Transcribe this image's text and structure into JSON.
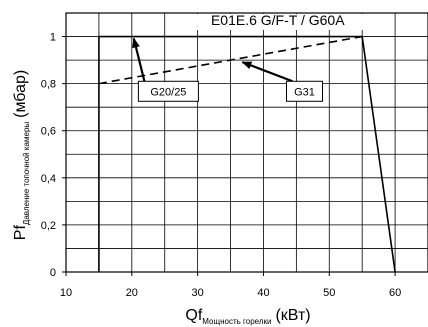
{
  "chart_data": {
    "type": "line",
    "title": "E01E.6 G/F-T / G60A",
    "xlabel": {
      "main": "Qf",
      "sub": "Мощность горелки",
      "unit": "(кВт)"
    },
    "ylabel": {
      "main": "Pf",
      "sub": "Давление топочной камеры",
      "unit": "(мбар)"
    },
    "xlim": [
      10,
      65
    ],
    "ylim": [
      0,
      1.1
    ],
    "x_ticks": [
      10,
      20,
      30,
      40,
      50,
      60
    ],
    "y_ticks": [
      0,
      0.2,
      0.4,
      0.6,
      0.8,
      1
    ],
    "x_tick_labels": [
      "10",
      "20",
      "30",
      "40",
      "50",
      "60"
    ],
    "y_tick_labels": [
      "0",
      "0,2",
      "0,4",
      "0,6",
      "0,8",
      "1"
    ],
    "grid": true,
    "series": [
      {
        "name": "G20/25",
        "style": "solid",
        "color": "#000000",
        "x": [
          15,
          15,
          55,
          60
        ],
        "y": [
          0,
          1,
          1,
          0
        ]
      },
      {
        "name": "G31",
        "style": "dashed",
        "color": "#000000",
        "x": [
          15,
          55
        ],
        "y": [
          0.8,
          1
        ]
      }
    ],
    "annotations": [
      {
        "text": "G20/25",
        "series": "G20/25",
        "point": [
          20,
          1
        ],
        "box": [
          21,
          0.81
        ]
      },
      {
        "text": "G31",
        "series": "G31",
        "point": [
          36.5,
          0.9
        ],
        "box": [
          43.5,
          0.81
        ]
      }
    ]
  }
}
